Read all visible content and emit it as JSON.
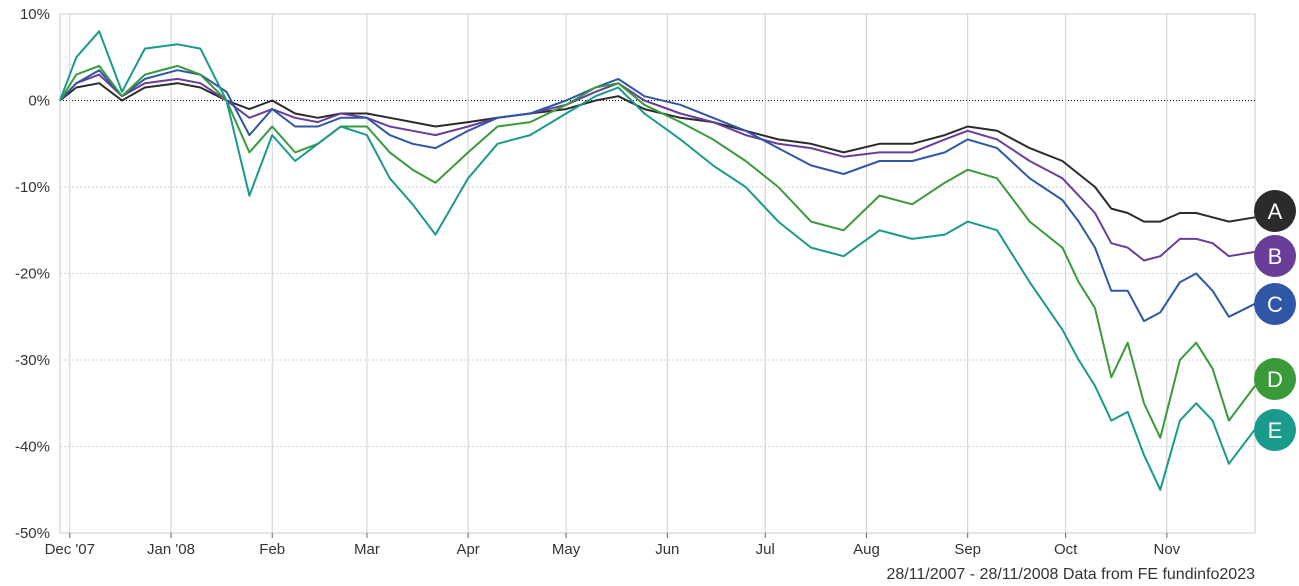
{
  "chart_data": {
    "type": "line",
    "y_unit_suffix": "%",
    "ylim": [
      -50,
      10
    ],
    "y_ticks": [
      10,
      0,
      -10,
      -20,
      -30,
      -40,
      -50
    ],
    "y_tick_labels": [
      "10%",
      "0%",
      "-10%",
      "-20%",
      "-30%",
      "-40%",
      "-50%"
    ],
    "x_range": [
      "2007-11-28",
      "2008-11-28"
    ],
    "x_ticks": [
      {
        "date": "2007-12-01",
        "label": "Dec '07"
      },
      {
        "date": "2008-01-01",
        "label": "Jan '08"
      },
      {
        "date": "2008-02-01",
        "label": "Feb"
      },
      {
        "date": "2008-03-01",
        "label": "Mar"
      },
      {
        "date": "2008-04-01",
        "label": "Apr"
      },
      {
        "date": "2008-05-01",
        "label": "May"
      },
      {
        "date": "2008-06-01",
        "label": "Jun"
      },
      {
        "date": "2008-07-01",
        "label": "Jul"
      },
      {
        "date": "2008-08-01",
        "label": "Aug"
      },
      {
        "date": "2008-09-01",
        "label": "Sep"
      },
      {
        "date": "2008-10-01",
        "label": "Oct"
      },
      {
        "date": "2008-11-01",
        "label": "Nov"
      }
    ],
    "grid": true,
    "zero_line": "dotted",
    "legend": "right-end badges",
    "series": [
      {
        "name": "A",
        "color": "#2b2b2b",
        "points": [
          [
            "2007-11-28",
            0
          ],
          [
            "2007-12-03",
            1.5
          ],
          [
            "2007-12-10",
            2
          ],
          [
            "2007-12-17",
            0
          ],
          [
            "2007-12-24",
            1.5
          ],
          [
            "2008-01-03",
            2
          ],
          [
            "2008-01-10",
            1.5
          ],
          [
            "2008-01-18",
            0
          ],
          [
            "2008-01-25",
            -1
          ],
          [
            "2008-02-01",
            0
          ],
          [
            "2008-02-08",
            -1.5
          ],
          [
            "2008-02-15",
            -2
          ],
          [
            "2008-02-22",
            -1.5
          ],
          [
            "2008-03-01",
            -1.5
          ],
          [
            "2008-03-08",
            -2
          ],
          [
            "2008-03-15",
            -2.5
          ],
          [
            "2008-03-22",
            -3
          ],
          [
            "2008-04-01",
            -2.5
          ],
          [
            "2008-04-10",
            -2
          ],
          [
            "2008-04-20",
            -1.5
          ],
          [
            "2008-05-01",
            -1
          ],
          [
            "2008-05-10",
            0
          ],
          [
            "2008-05-17",
            0.5
          ],
          [
            "2008-05-25",
            -1
          ],
          [
            "2008-06-05",
            -2
          ],
          [
            "2008-06-15",
            -2.5
          ],
          [
            "2008-06-25",
            -3.5
          ],
          [
            "2008-07-05",
            -4.5
          ],
          [
            "2008-07-15",
            -5
          ],
          [
            "2008-07-25",
            -6
          ],
          [
            "2008-08-05",
            -5
          ],
          [
            "2008-08-15",
            -5
          ],
          [
            "2008-08-25",
            -4
          ],
          [
            "2008-09-01",
            -3
          ],
          [
            "2008-09-10",
            -3.5
          ],
          [
            "2008-09-20",
            -5.5
          ],
          [
            "2008-09-30",
            -7
          ],
          [
            "2008-10-05",
            -8.5
          ],
          [
            "2008-10-10",
            -10
          ],
          [
            "2008-10-15",
            -12.5
          ],
          [
            "2008-10-20",
            -13
          ],
          [
            "2008-10-25",
            -14
          ],
          [
            "2008-10-30",
            -14
          ],
          [
            "2008-11-05",
            -13
          ],
          [
            "2008-11-10",
            -13
          ],
          [
            "2008-11-15",
            -13.5
          ],
          [
            "2008-11-20",
            -14
          ],
          [
            "2008-11-28",
            -13.5
          ]
        ]
      },
      {
        "name": "B",
        "color": "#6a3d9a",
        "points": [
          [
            "2007-11-28",
            0
          ],
          [
            "2007-12-03",
            2
          ],
          [
            "2007-12-10",
            3
          ],
          [
            "2007-12-17",
            0.5
          ],
          [
            "2007-12-24",
            2
          ],
          [
            "2008-01-03",
            2.5
          ],
          [
            "2008-01-10",
            2
          ],
          [
            "2008-01-18",
            0
          ],
          [
            "2008-01-25",
            -2
          ],
          [
            "2008-02-01",
            -1
          ],
          [
            "2008-02-08",
            -2
          ],
          [
            "2008-02-15",
            -2.5
          ],
          [
            "2008-02-22",
            -1.5
          ],
          [
            "2008-03-01",
            -2
          ],
          [
            "2008-03-08",
            -3
          ],
          [
            "2008-03-15",
            -3.5
          ],
          [
            "2008-03-22",
            -4
          ],
          [
            "2008-04-01",
            -3
          ],
          [
            "2008-04-10",
            -2
          ],
          [
            "2008-04-20",
            -1.5
          ],
          [
            "2008-05-01",
            -0.5
          ],
          [
            "2008-05-10",
            1
          ],
          [
            "2008-05-17",
            2
          ],
          [
            "2008-05-25",
            0
          ],
          [
            "2008-06-05",
            -1.5
          ],
          [
            "2008-06-15",
            -2.5
          ],
          [
            "2008-06-25",
            -4
          ],
          [
            "2008-07-05",
            -5
          ],
          [
            "2008-07-15",
            -5.5
          ],
          [
            "2008-07-25",
            -6.5
          ],
          [
            "2008-08-05",
            -6
          ],
          [
            "2008-08-15",
            -6
          ],
          [
            "2008-08-25",
            -4.5
          ],
          [
            "2008-09-01",
            -3.5
          ],
          [
            "2008-09-10",
            -4.5
          ],
          [
            "2008-09-20",
            -7
          ],
          [
            "2008-09-30",
            -9
          ],
          [
            "2008-10-05",
            -11
          ],
          [
            "2008-10-10",
            -13
          ],
          [
            "2008-10-15",
            -16.5
          ],
          [
            "2008-10-20",
            -17
          ],
          [
            "2008-10-25",
            -18.5
          ],
          [
            "2008-10-30",
            -18
          ],
          [
            "2008-11-05",
            -16
          ],
          [
            "2008-11-10",
            -16
          ],
          [
            "2008-11-15",
            -16.5
          ],
          [
            "2008-11-20",
            -18
          ],
          [
            "2008-11-28",
            -17.5
          ]
        ]
      },
      {
        "name": "C",
        "color": "#2f57a6",
        "points": [
          [
            "2007-11-28",
            0
          ],
          [
            "2007-12-03",
            2
          ],
          [
            "2007-12-10",
            3.5
          ],
          [
            "2007-12-17",
            0.5
          ],
          [
            "2007-12-24",
            2.5
          ],
          [
            "2008-01-03",
            3.5
          ],
          [
            "2008-01-10",
            3
          ],
          [
            "2008-01-18",
            1
          ],
          [
            "2008-01-25",
            -4
          ],
          [
            "2008-02-01",
            -1
          ],
          [
            "2008-02-08",
            -3
          ],
          [
            "2008-02-15",
            -3
          ],
          [
            "2008-02-22",
            -2
          ],
          [
            "2008-03-01",
            -2
          ],
          [
            "2008-03-08",
            -4
          ],
          [
            "2008-03-15",
            -5
          ],
          [
            "2008-03-22",
            -5.5
          ],
          [
            "2008-04-01",
            -3.5
          ],
          [
            "2008-04-10",
            -2
          ],
          [
            "2008-04-20",
            -1.5
          ],
          [
            "2008-05-01",
            0
          ],
          [
            "2008-05-10",
            1.5
          ],
          [
            "2008-05-17",
            2.5
          ],
          [
            "2008-05-25",
            0.5
          ],
          [
            "2008-06-05",
            -0.5
          ],
          [
            "2008-06-15",
            -2
          ],
          [
            "2008-06-25",
            -3.5
          ],
          [
            "2008-07-05",
            -5.5
          ],
          [
            "2008-07-15",
            -7.5
          ],
          [
            "2008-07-25",
            -8.5
          ],
          [
            "2008-08-05",
            -7
          ],
          [
            "2008-08-15",
            -7
          ],
          [
            "2008-08-25",
            -6
          ],
          [
            "2008-09-01",
            -4.5
          ],
          [
            "2008-09-10",
            -5.5
          ],
          [
            "2008-09-20",
            -9
          ],
          [
            "2008-09-30",
            -11.5
          ],
          [
            "2008-10-05",
            -14
          ],
          [
            "2008-10-10",
            -17
          ],
          [
            "2008-10-15",
            -22
          ],
          [
            "2008-10-20",
            -22
          ],
          [
            "2008-10-25",
            -25.5
          ],
          [
            "2008-10-30",
            -24.5
          ],
          [
            "2008-11-05",
            -21
          ],
          [
            "2008-11-10",
            -20
          ],
          [
            "2008-11-15",
            -22
          ],
          [
            "2008-11-20",
            -25
          ],
          [
            "2008-11-28",
            -23.5
          ]
        ]
      },
      {
        "name": "D",
        "color": "#3a9a3a",
        "points": [
          [
            "2007-11-28",
            0
          ],
          [
            "2007-12-03",
            3
          ],
          [
            "2007-12-10",
            4
          ],
          [
            "2007-12-17",
            0.5
          ],
          [
            "2007-12-24",
            3
          ],
          [
            "2008-01-03",
            4
          ],
          [
            "2008-01-10",
            3
          ],
          [
            "2008-01-18",
            0
          ],
          [
            "2008-01-25",
            -6
          ],
          [
            "2008-02-01",
            -3
          ],
          [
            "2008-02-08",
            -6
          ],
          [
            "2008-02-15",
            -5
          ],
          [
            "2008-02-22",
            -3
          ],
          [
            "2008-03-01",
            -3
          ],
          [
            "2008-03-08",
            -6
          ],
          [
            "2008-03-15",
            -8
          ],
          [
            "2008-03-22",
            -9.5
          ],
          [
            "2008-04-01",
            -6
          ],
          [
            "2008-04-10",
            -3
          ],
          [
            "2008-04-20",
            -2.5
          ],
          [
            "2008-05-01",
            -0.5
          ],
          [
            "2008-05-10",
            1.5
          ],
          [
            "2008-05-17",
            2
          ],
          [
            "2008-05-25",
            -0.5
          ],
          [
            "2008-06-05",
            -2.5
          ],
          [
            "2008-06-15",
            -4.5
          ],
          [
            "2008-06-25",
            -7
          ],
          [
            "2008-07-05",
            -10
          ],
          [
            "2008-07-15",
            -14
          ],
          [
            "2008-07-25",
            -15
          ],
          [
            "2008-08-05",
            -11
          ],
          [
            "2008-08-15",
            -12
          ],
          [
            "2008-08-25",
            -9.5
          ],
          [
            "2008-09-01",
            -8
          ],
          [
            "2008-09-10",
            -9
          ],
          [
            "2008-09-20",
            -14
          ],
          [
            "2008-09-30",
            -17
          ],
          [
            "2008-10-05",
            -21
          ],
          [
            "2008-10-10",
            -24
          ],
          [
            "2008-10-15",
            -32
          ],
          [
            "2008-10-20",
            -28
          ],
          [
            "2008-10-25",
            -35
          ],
          [
            "2008-10-30",
            -39
          ],
          [
            "2008-11-05",
            -30
          ],
          [
            "2008-11-10",
            -28
          ],
          [
            "2008-11-15",
            -31
          ],
          [
            "2008-11-20",
            -37
          ],
          [
            "2008-11-28",
            -33
          ]
        ]
      },
      {
        "name": "E",
        "color": "#1a9a8a",
        "points": [
          [
            "2007-11-28",
            0
          ],
          [
            "2007-12-03",
            5
          ],
          [
            "2007-12-10",
            8
          ],
          [
            "2007-12-17",
            1
          ],
          [
            "2007-12-24",
            6
          ],
          [
            "2008-01-03",
            6.5
          ],
          [
            "2008-01-10",
            6
          ],
          [
            "2008-01-18",
            0
          ],
          [
            "2008-01-25",
            -11
          ],
          [
            "2008-02-01",
            -4
          ],
          [
            "2008-02-08",
            -7
          ],
          [
            "2008-02-15",
            -5
          ],
          [
            "2008-02-22",
            -3
          ],
          [
            "2008-03-01",
            -4
          ],
          [
            "2008-03-08",
            -9
          ],
          [
            "2008-03-15",
            -12
          ],
          [
            "2008-03-22",
            -15.5
          ],
          [
            "2008-04-01",
            -9
          ],
          [
            "2008-04-10",
            -5
          ],
          [
            "2008-04-20",
            -4
          ],
          [
            "2008-05-01",
            -1.5
          ],
          [
            "2008-05-10",
            0.5
          ],
          [
            "2008-05-17",
            1.5
          ],
          [
            "2008-05-25",
            -1.5
          ],
          [
            "2008-06-05",
            -4.5
          ],
          [
            "2008-06-15",
            -7.5
          ],
          [
            "2008-06-25",
            -10
          ],
          [
            "2008-07-05",
            -14
          ],
          [
            "2008-07-15",
            -17
          ],
          [
            "2008-07-25",
            -18
          ],
          [
            "2008-08-05",
            -15
          ],
          [
            "2008-08-15",
            -16
          ],
          [
            "2008-08-25",
            -15.5
          ],
          [
            "2008-09-01",
            -14
          ],
          [
            "2008-09-10",
            -15
          ],
          [
            "2008-09-20",
            -21
          ],
          [
            "2008-09-30",
            -26.5
          ],
          [
            "2008-10-05",
            -30
          ],
          [
            "2008-10-10",
            -33
          ],
          [
            "2008-10-15",
            -37
          ],
          [
            "2008-10-20",
            -36
          ],
          [
            "2008-10-25",
            -41
          ],
          [
            "2008-10-30",
            -45
          ],
          [
            "2008-11-05",
            -37
          ],
          [
            "2008-11-10",
            -35
          ],
          [
            "2008-11-15",
            -37
          ],
          [
            "2008-11-20",
            -42
          ],
          [
            "2008-11-28",
            -38
          ]
        ]
      }
    ]
  },
  "footer_text": "28/11/2007 - 28/11/2008 Data from FE fundinfo2023"
}
